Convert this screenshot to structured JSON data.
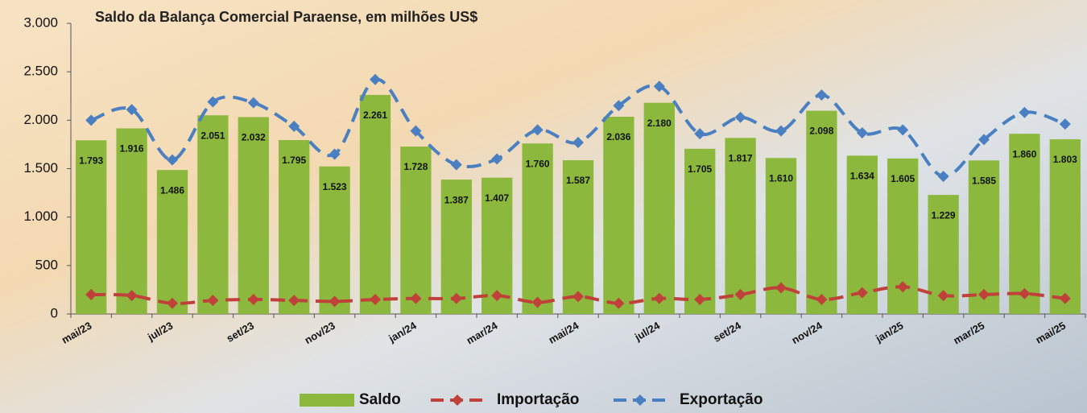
{
  "chart_data": {
    "type": "bar-line",
    "title": "Saldo da Balança Comercial Paraense, em milhões US$",
    "categories": [
      "mai/23",
      null,
      "jul/23",
      null,
      "set/23",
      null,
      "nov/23",
      null,
      "jan/24",
      null,
      "mar/24",
      null,
      "mai/24",
      null,
      "jul/24",
      null,
      "set/24",
      null,
      "nov/24",
      null,
      "jan/25",
      null,
      "mar/25",
      null,
      "mai/25"
    ],
    "series": [
      {
        "name": "Saldo",
        "type": "bar",
        "color": "#8cb83e",
        "values": [
          1793,
          1916,
          1486,
          2051,
          2032,
          1795,
          1523,
          2261,
          1728,
          1387,
          1407,
          1760,
          1587,
          2036,
          2180,
          1705,
          1817,
          1610,
          2098,
          1634,
          1605,
          1229,
          1585,
          1860,
          1803
        ],
        "value_labels": [
          "1.793",
          "1.916",
          "1.486",
          "2.051",
          "2.032",
          "1.795",
          "1.523",
          "2.261",
          "1.728",
          "1.387",
          "1.407",
          "1.760",
          "1.587",
          "2.036",
          "2.180",
          "1.705",
          "1.817",
          "1.610",
          "2.098",
          "1.634",
          "1.605",
          "1.229",
          "1.585",
          "1.860",
          "1.803"
        ]
      },
      {
        "name": "Importação",
        "type": "line",
        "color": "#c0403a",
        "values": [
          200,
          190,
          110,
          140,
          150,
          140,
          130,
          150,
          160,
          160,
          190,
          120,
          180,
          110,
          160,
          150,
          200,
          270,
          150,
          220,
          280,
          190,
          200,
          210,
          160
        ]
      },
      {
        "name": "Exportação",
        "type": "line",
        "color": "#4a7fc1",
        "values": [
          2000,
          2110,
          1590,
          2190,
          2180,
          1937,
          1650,
          2420,
          1890,
          1540,
          1600,
          1900,
          1770,
          2150,
          2350,
          1860,
          2030,
          1890,
          2260,
          1870,
          1900,
          1420,
          1800,
          2080,
          1960
        ]
      }
    ],
    "ylim": [
      0,
      3000
    ],
    "yticks": [
      0,
      500,
      {
        "value": 1000,
        "label": "1.000"
      },
      {
        "value": 1500,
        "label": "1.500"
      },
      {
        "value": 2000,
        "label": "2.000"
      },
      {
        "value": 2500,
        "label": "2.500"
      },
      {
        "value": 3000,
        "label": "3.000"
      }
    ],
    "grid": false,
    "legend": "bottom"
  }
}
